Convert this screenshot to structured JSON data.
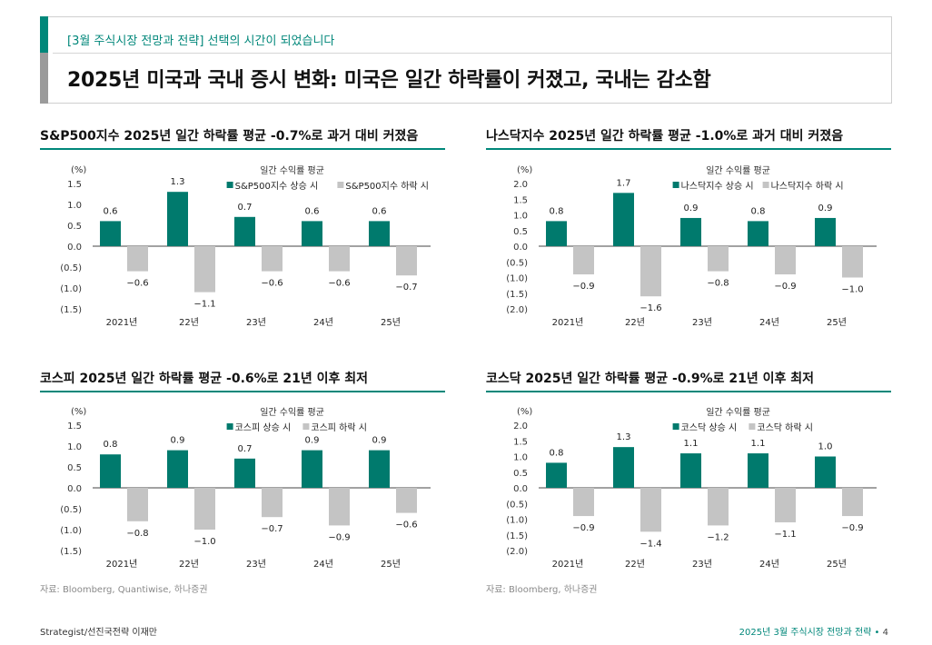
{
  "header": {
    "subtitle": "[3월 주식시장 전망과 전략] 선택의 시간이 되었습니다",
    "title": "2025년 미국과 국내 증시 변화: 미국은 일간 하락률이 커졌고, 국내는 감소함"
  },
  "colors": {
    "up": "#007a6d",
    "down": "#c4c4c4",
    "accent": "#00877a"
  },
  "chart_data": [
    {
      "type": "bar",
      "title": "S&P500지수 2025년 일간 하락률 평균 -0.7%로 과거 대비 커졌음",
      "legend_title": "일간 수익률 평균",
      "unit": "(%)",
      "categories": [
        "2021년",
        "22년",
        "23년",
        "24년",
        "25년"
      ],
      "series": [
        {
          "name": "S&P500지수 상승 시",
          "values": [
            0.6,
            1.3,
            0.7,
            0.6,
            0.6
          ],
          "labels": [
            "0.6",
            "1.3",
            "0.7",
            "0.6",
            "0.6"
          ]
        },
        {
          "name": "S&P500지수 하락 시",
          "values": [
            -0.6,
            -1.1,
            -0.6,
            -0.6,
            -0.7
          ],
          "labels": [
            "-0.6",
            "-1.1",
            "-0.6",
            "-0.6",
            "-0.7"
          ]
        }
      ],
      "ylim": [
        -1.5,
        1.5
      ],
      "yticks": [
        1.5,
        1.0,
        0.5,
        0.0,
        -0.5,
        -1.0,
        -1.5
      ],
      "ytick_labels": [
        "1.5",
        "1.0",
        "0.5",
        "0.0",
        "(0.5)",
        "(1.0)",
        "(1.5)"
      ],
      "legend_position": "top-right"
    },
    {
      "type": "bar",
      "title": "나스닥지수 2025년 일간 하락률 평균 -1.0%로 과거 대비 커졌음",
      "legend_title": "일간 수익률 평균",
      "unit": "(%)",
      "categories": [
        "2021년",
        "22년",
        "23년",
        "24년",
        "25년"
      ],
      "series": [
        {
          "name": "나스닥지수 상승 시",
          "values": [
            0.8,
            1.7,
            0.9,
            0.8,
            0.9
          ],
          "labels": [
            "0.8",
            "1.7",
            "0.9",
            "0.8",
            "0.9"
          ]
        },
        {
          "name": "나스닥지수 하락 시",
          "values": [
            -0.9,
            -1.6,
            -0.8,
            -0.9,
            -1.0
          ],
          "labels": [
            "-0.9",
            "-1.6",
            "-0.8",
            "-0.9",
            "-1.0"
          ]
        }
      ],
      "ylim": [
        -2.0,
        2.0
      ],
      "yticks": [
        2.0,
        1.5,
        1.0,
        0.5,
        0.0,
        -0.5,
        -1.0,
        -1.5,
        -2.0
      ],
      "ytick_labels": [
        "2.0",
        "1.5",
        "1.0",
        "0.5",
        "0.0",
        "(0.5)",
        "(1.0)",
        "(1.5)",
        "(2.0)"
      ],
      "legend_position": "top-right"
    },
    {
      "type": "bar",
      "title": "코스피 2025년 일간 하락률 평균 -0.6%로 21년 이후 최저",
      "legend_title": "일간 수익률 평균",
      "unit": "(%)",
      "categories": [
        "2021년",
        "22년",
        "23년",
        "24년",
        "25년"
      ],
      "series": [
        {
          "name": "코스피 상승 시",
          "values": [
            0.8,
            0.9,
            0.7,
            0.9,
            0.9
          ],
          "labels": [
            "0.8",
            "0.9",
            "0.7",
            "0.9",
            "0.9"
          ]
        },
        {
          "name": "코스피 하락 시",
          "values": [
            -0.8,
            -1.0,
            -0.7,
            -0.9,
            -0.6
          ],
          "labels": [
            "-0.8",
            "-1.0",
            "-0.7",
            "-0.9",
            "-0.6"
          ]
        }
      ],
      "ylim": [
        -1.5,
        1.5
      ],
      "yticks": [
        1.5,
        1.0,
        0.5,
        0.0,
        -0.5,
        -1.0,
        -1.5
      ],
      "ytick_labels": [
        "1.5",
        "1.0",
        "0.5",
        "0.0",
        "(0.5)",
        "(1.0)",
        "(1.5)"
      ],
      "legend_position": "top-right"
    },
    {
      "type": "bar",
      "title": "코스닥 2025년 일간 하락률 평균 -0.9%로 21년 이후 최저",
      "legend_title": "일간 수익률 평균",
      "unit": "(%)",
      "categories": [
        "2021년",
        "22년",
        "23년",
        "24년",
        "25년"
      ],
      "series": [
        {
          "name": "코스닥 상승 시",
          "values": [
            0.8,
            1.3,
            1.1,
            1.1,
            1.0
          ],
          "labels": [
            "0.8",
            "1.3",
            "1.1",
            "1.1",
            "1.0"
          ]
        },
        {
          "name": "코스닥 하락 시",
          "values": [
            -0.9,
            -1.4,
            -1.2,
            -1.1,
            -0.9
          ],
          "labels": [
            "-0.9",
            "-1.4",
            "-1.2",
            "-1.1",
            "-0.9"
          ]
        }
      ],
      "ylim": [
        -2.0,
        2.0
      ],
      "yticks": [
        2.0,
        1.5,
        1.0,
        0.5,
        0.0,
        -0.5,
        -1.0,
        -1.5,
        -2.0
      ],
      "ytick_labels": [
        "2.0",
        "1.5",
        "1.0",
        "0.5",
        "0.0",
        "(0.5)",
        "(1.0)",
        "(1.5)",
        "(2.0)"
      ],
      "legend_position": "top-right"
    }
  ],
  "sources": [
    "자료: Bloomberg, Quantiwise, 하나증권",
    "자료: Bloomberg, 하나증권"
  ],
  "footer": {
    "left": "Strategist/선진국전략 이재만",
    "right": "2025년 3월 주식시장 전망과 전략 •",
    "page": "4"
  }
}
